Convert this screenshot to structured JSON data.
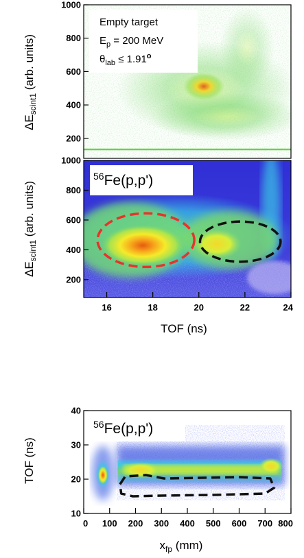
{
  "chart_data": [
    {
      "type": "heatmap",
      "title": "",
      "annotations": {
        "line1": "Empty target",
        "line2_main": "E",
        "line2_sub": "p",
        "line2_rest": " = 200 MeV",
        "line3_main": "θ",
        "line3_sub": "lab",
        "line3_rest": " ≤ 1.91",
        "line3_deg": "o"
      },
      "xlabel": "",
      "ylabel": {
        "prefix": "ΔE",
        "sub": "scint1",
        "suffix": " (arb. units)"
      },
      "xlim": [
        15,
        24
      ],
      "ylim": [
        80,
        1000
      ],
      "yticks": [
        200,
        400,
        600,
        800,
        1000
      ],
      "yticklabels": [
        "200",
        "400",
        "600",
        "800",
        "1000"
      ],
      "hotspots": [
        {
          "x": 21.0,
          "y": 480,
          "level": 0.25
        },
        {
          "x": 20.2,
          "y": 380,
          "level": 0.35
        },
        {
          "x": 22.5,
          "y": 350,
          "level": 0.3
        }
      ],
      "grid": false
    },
    {
      "type": "heatmap",
      "label_sup": "56",
      "label": "Fe(p,p')",
      "xlabel": "TOF (ns)",
      "ylabel": {
        "prefix": "ΔE",
        "sub": "scint1",
        "suffix": " (arb. units)"
      },
      "xlim": [
        15,
        24
      ],
      "ylim": [
        80,
        1000
      ],
      "xticks": [
        16,
        18,
        20,
        22,
        24
      ],
      "xticklabels": [
        "16",
        "18",
        "20",
        "22",
        "24"
      ],
      "yticks": [
        200,
        400,
        600,
        800,
        1000
      ],
      "yticklabels": [
        "200",
        "400",
        "600",
        "800",
        "1000"
      ],
      "hotspots": [
        {
          "x": 17.6,
          "y": 450,
          "level": 1.0
        },
        {
          "x": 21.2,
          "y": 440,
          "level": 0.85
        }
      ],
      "gates": [
        {
          "color": "#e8332a",
          "cx": 17.7,
          "cy": 465,
          "rx": 2.1,
          "ry": 180
        },
        {
          "color": "#111111",
          "cx": 21.8,
          "cy": 455,
          "rx": 1.75,
          "ry": 135
        }
      ],
      "grid": false
    },
    {
      "type": "heatmap",
      "label_sup": "56",
      "label": "Fe(p,p')",
      "xlabel": {
        "prefix": "x",
        "sub": "fp",
        "suffix": " (mm)"
      },
      "ylabel": "TOF (ns)",
      "xlim": [
        0,
        800
      ],
      "ylim": [
        10,
        40
      ],
      "xticks": [
        0,
        100,
        200,
        300,
        400,
        500,
        600,
        700,
        800
      ],
      "xticklabels": [
        "0",
        "100",
        "200",
        "300",
        "400",
        "500",
        "600",
        "700",
        "800"
      ],
      "yticks": [
        10,
        20,
        30,
        40
      ],
      "yticklabels": [
        "10",
        "20",
        "30",
        "40"
      ],
      "hotspots": [
        {
          "x": 72,
          "y": 17.5,
          "level": 1.0
        },
        {
          "x": 230,
          "y": 17.8,
          "level": 0.75
        },
        {
          "x": 480,
          "y": 18.2,
          "level": 0.55
        },
        {
          "x": 720,
          "y": 18.5,
          "level": 0.6
        }
      ],
      "gate": {
        "color": "#111111",
        "points": [
          [
            140,
            18.5
          ],
          [
            160,
            20.8
          ],
          [
            240,
            21.2
          ],
          [
            310,
            20.2
          ],
          [
            600,
            20.6
          ],
          [
            720,
            20.2
          ],
          [
            735,
            17.5
          ],
          [
            700,
            15.8
          ],
          [
            500,
            15.4
          ],
          [
            300,
            15.2
          ],
          [
            190,
            15.0
          ],
          [
            145,
            15.8
          ]
        ]
      },
      "grid": false
    }
  ]
}
